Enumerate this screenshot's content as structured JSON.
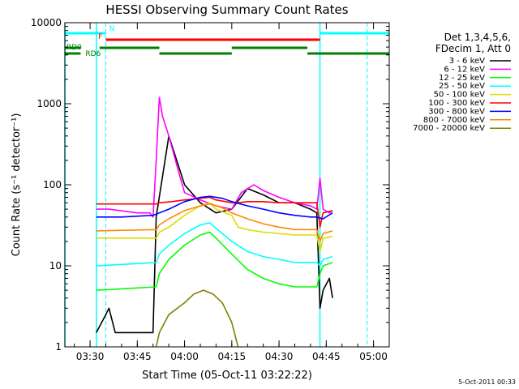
{
  "chart_data": {
    "type": "line",
    "title": "HESSI Observing Summary Count Rates",
    "xlabel": "Start Time (05-Oct-11 03:22:22)",
    "ylabel": "Count Rate (s⁻¹ detector⁻¹)",
    "footer": "5-Oct-2011 00:33",
    "y_scale": "log",
    "ylim": [
      1,
      10000
    ],
    "xlim": [
      "03:22",
      "05:05"
    ],
    "x_ticks": [
      "03:30",
      "03:45",
      "04:00",
      "04:15",
      "04:30",
      "04:45",
      "05:00"
    ],
    "y_ticks": [
      "1",
      "10",
      "100",
      "1000",
      "10000"
    ],
    "legend": {
      "placement": "right",
      "header": [
        "Det 1,3,4,5,6,",
        "FDecim 1, Att 0"
      ]
    },
    "flag_labels": {
      "N": "N",
      "F": "F",
      "RD0": "RD0",
      "RD6": "RD6"
    },
    "flags": {
      "N": {
        "color": "#00ffff",
        "segments": [
          [
            "03:22",
            "03:35"
          ],
          [
            "04:43",
            "05:05"
          ]
        ]
      },
      "F": {
        "color": "#ff0000",
        "segments": [
          [
            "03:35",
            "04:43"
          ]
        ]
      },
      "RD0": {
        "color": "#008000",
        "segments": [
          [
            "03:22",
            "03:27"
          ],
          [
            "03:33",
            "03:52"
          ],
          [
            "04:15",
            "04:39"
          ]
        ]
      },
      "RD6": {
        "color": "#008000",
        "segments": [
          [
            "03:22",
            "03:27"
          ],
          [
            "03:52",
            "04:15"
          ],
          [
            "04:39",
            "05:05"
          ]
        ]
      }
    },
    "vlines": {
      "dashed": [
        "03:35",
        "04:58"
      ],
      "solid": [
        "03:22",
        "03:32",
        "04:43"
      ]
    },
    "series": [
      {
        "name": "3 - 6 keV",
        "color": "#000000",
        "x": [
          "03:32",
          "03:35",
          "03:36",
          "03:38",
          "03:50",
          "03:51",
          "03:55",
          "04:00",
          "04:05",
          "04:10",
          "04:15",
          "04:20",
          "04:25",
          "04:30",
          "04:35",
          "04:40",
          "04:42",
          "04:43",
          "04:44",
          "04:46",
          "04:47"
        ],
        "y": [
          1.5,
          2.5,
          3,
          1.5,
          1.5,
          40,
          400,
          100,
          60,
          45,
          50,
          90,
          75,
          60,
          60,
          50,
          45,
          3,
          5,
          7,
          4
        ]
      },
      {
        "name": "6 - 12 keV",
        "color": "#ff00ff",
        "x": [
          "03:32",
          "03:36",
          "03:45",
          "03:49",
          "03:50",
          "03:51",
          "03:52",
          "03:53",
          "03:55",
          "03:58",
          "04:00",
          "04:05",
          "04:10",
          "04:15",
          "04:18",
          "04:22",
          "04:25",
          "04:30",
          "04:35",
          "04:40",
          "04:42",
          "04:43",
          "04:44",
          "04:46",
          "04:47"
        ],
        "y": [
          50,
          50,
          45,
          45,
          40,
          200,
          1200,
          700,
          400,
          150,
          80,
          65,
          55,
          50,
          80,
          100,
          85,
          70,
          60,
          55,
          50,
          120,
          50,
          45,
          48
        ]
      },
      {
        "name": "12 - 25 keV",
        "color": "#00ff00",
        "x": [
          "03:32",
          "03:51",
          "03:52",
          "03:55",
          "04:00",
          "04:05",
          "04:08",
          "04:10",
          "04:15",
          "04:20",
          "04:25",
          "04:30",
          "04:35",
          "04:42",
          "04:43",
          "04:44",
          "04:47"
        ],
        "y": [
          5,
          5.5,
          8,
          12,
          18,
          24,
          26,
          22,
          14,
          9,
          7,
          6,
          5.5,
          5.5,
          8,
          10,
          11
        ]
      },
      {
        "name": "25 - 50 keV",
        "color": "#00ffff",
        "x": [
          "03:32",
          "03:51",
          "03:52",
          "03:55",
          "04:00",
          "04:05",
          "04:08",
          "04:10",
          "04:15",
          "04:20",
          "04:25",
          "04:30",
          "04:35",
          "04:42",
          "04:43",
          "04:44",
          "04:47"
        ],
        "y": [
          10,
          11,
          14,
          18,
          25,
          32,
          34,
          29,
          20,
          15,
          13,
          12,
          11,
          11,
          10,
          12,
          13
        ]
      },
      {
        "name": "50 - 100 keV",
        "color": "#dddd00",
        "x": [
          "03:32",
          "03:51",
          "03:52",
          "03:55",
          "04:00",
          "04:05",
          "04:08",
          "04:10",
          "04:15",
          "04:17",
          "04:20",
          "04:25",
          "04:30",
          "04:35",
          "04:42",
          "04:43",
          "04:44",
          "04:47"
        ],
        "y": [
          22,
          22,
          26,
          30,
          42,
          55,
          60,
          50,
          42,
          30,
          28,
          26,
          25,
          24,
          24,
          15,
          22,
          23
        ]
      },
      {
        "name": "100 - 300 keV",
        "color": "#ff0000",
        "x": [
          "03:32",
          "03:51",
          "03:52",
          "03:56",
          "04:00",
          "04:05",
          "04:08",
          "04:10",
          "04:15",
          "04:17",
          "04:20",
          "04:25",
          "04:30",
          "04:35",
          "04:42",
          "04:43",
          "04:44",
          "04:47"
        ],
        "y": [
          58,
          58,
          60,
          62,
          65,
          68,
          70,
          65,
          60,
          60,
          62,
          62,
          60,
          60,
          60,
          30,
          45,
          48
        ]
      },
      {
        "name": "300 - 800 keV",
        "color": "#0000ff",
        "x": [
          "03:32",
          "03:40",
          "03:50",
          "03:55",
          "04:00",
          "04:05",
          "04:08",
          "04:12",
          "04:15",
          "04:20",
          "04:25",
          "04:30",
          "04:35",
          "04:40",
          "04:42",
          "04:44",
          "04:47"
        ],
        "y": [
          40,
          40,
          42,
          50,
          62,
          70,
          72,
          68,
          62,
          55,
          50,
          45,
          42,
          40,
          40,
          38,
          45
        ]
      },
      {
        "name": "800 - 7000 keV",
        "color": "#ff8800",
        "x": [
          "03:32",
          "03:51",
          "03:52",
          "03:55",
          "04:00",
          "04:05",
          "04:08",
          "04:12",
          "04:15",
          "04:20",
          "04:25",
          "04:30",
          "04:35",
          "04:42",
          "04:43",
          "04:44",
          "04:47"
        ],
        "y": [
          27,
          28,
          32,
          38,
          48,
          55,
          58,
          52,
          45,
          38,
          33,
          30,
          28,
          28,
          20,
          25,
          27
        ]
      },
      {
        "name": "7000 - 20000 keV",
        "color": "#808000",
        "x": [
          "03:51",
          "03:52",
          "03:55",
          "04:00",
          "04:03",
          "04:06",
          "04:09",
          "04:12",
          "04:15",
          "04:17"
        ],
        "y": [
          1,
          1.5,
          2.5,
          3.5,
          4.5,
          5,
          4.5,
          3.5,
          2,
          1
        ]
      }
    ]
  }
}
